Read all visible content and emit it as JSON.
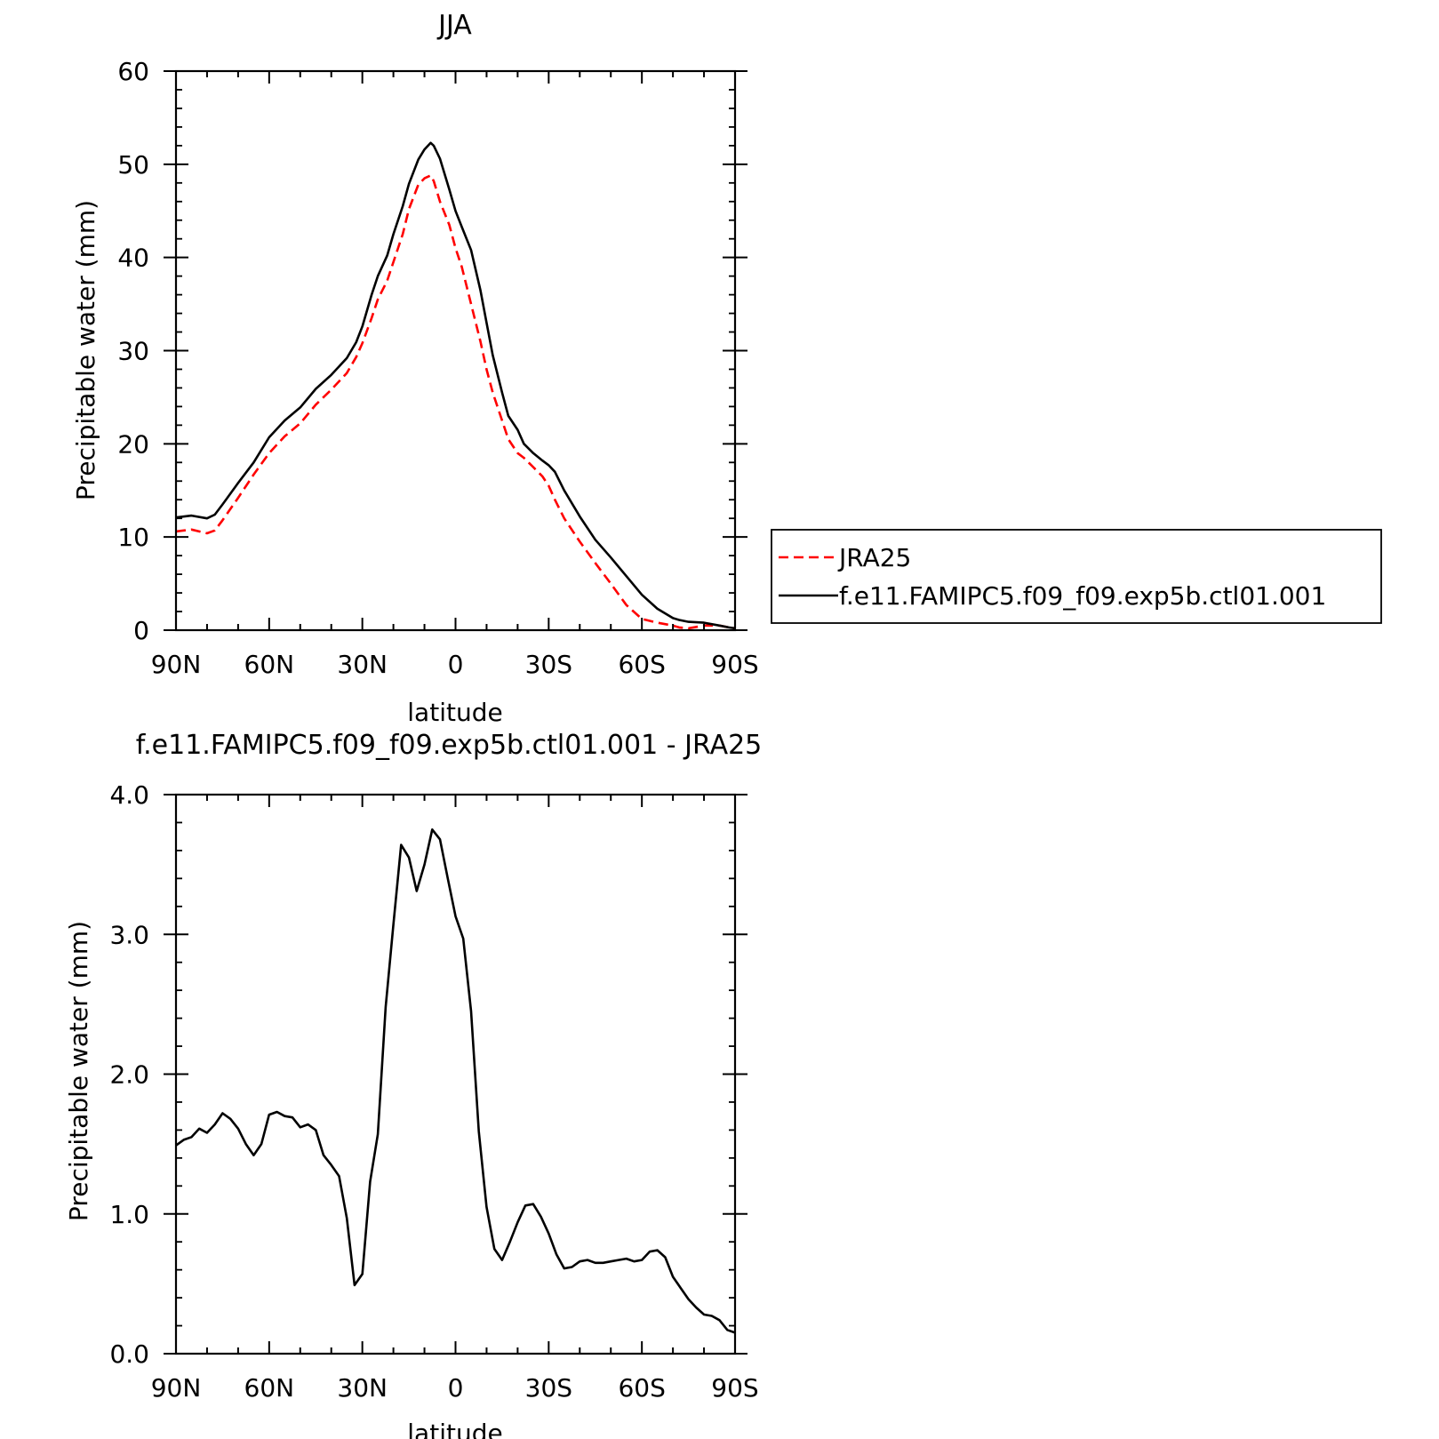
{
  "chart_data": [
    {
      "type": "line",
      "title": "JJA",
      "xlabel": "latitude",
      "ylabel": "Precipitable water (mm)",
      "xlim": [
        90,
        -90
      ],
      "ylim": [
        0,
        60
      ],
      "xticks": [
        90,
        60,
        30,
        0,
        -30,
        -60,
        -90
      ],
      "xtick_labels": [
        "90N",
        "60N",
        "30N",
        "0",
        "30S",
        "60S",
        "90S"
      ],
      "yticks": [
        0,
        10,
        20,
        30,
        40,
        50,
        60
      ],
      "ytick_labels": [
        "0",
        "10",
        "20",
        "30",
        "40",
        "50",
        "60"
      ],
      "legend_position": "right",
      "grid": false,
      "series": [
        {
          "name": "JRA25",
          "color": "#ff0000",
          "style": "dashed",
          "x": [
            90,
            85,
            80,
            77.5,
            75,
            70,
            65,
            60,
            55,
            50,
            45,
            40,
            35,
            32,
            30,
            27,
            25,
            22,
            20,
            17,
            15,
            12,
            10,
            8,
            7,
            5,
            2,
            0,
            -2,
            -5,
            -8,
            -10,
            -12,
            -15,
            -17,
            -20,
            -22,
            -25,
            -28,
            -30,
            -32,
            -35,
            -40,
            -45,
            -50,
            -55,
            -60,
            -65,
            -70,
            -72,
            -75,
            -80,
            -85,
            -88,
            -90
          ],
          "values": [
            10.6,
            10.8,
            10.4,
            10.7,
            11.8,
            14.2,
            16.7,
            19.0,
            20.8,
            22.2,
            24.2,
            25.8,
            27.6,
            29.3,
            30.8,
            33.5,
            35.5,
            37.5,
            39.5,
            42.5,
            45.2,
            47.8,
            48.5,
            48.8,
            48.2,
            46.0,
            43.5,
            41.0,
            39.0,
            35.0,
            31.0,
            28.0,
            25.5,
            22.5,
            20.5,
            19.0,
            18.5,
            17.5,
            16.5,
            15.5,
            14.0,
            12.0,
            9.5,
            7.2,
            5.0,
            2.7,
            1.2,
            0.8,
            0.5,
            0.3,
            0.2,
            0.5,
            0.5,
            0.3,
            0.2
          ]
        },
        {
          "name": "f.e11.FAMIPC5.f09_f09.exp5b.ctl01.001",
          "color": "#000000",
          "style": "solid",
          "x": [
            90,
            85,
            80,
            77.5,
            75,
            70,
            65,
            60,
            55,
            50,
            45,
            40,
            35,
            32,
            30,
            27,
            25,
            22,
            20,
            17,
            15,
            12,
            10,
            8,
            7,
            5,
            2,
            0,
            -2,
            -5,
            -8,
            -10,
            -12,
            -15,
            -17,
            -20,
            -22,
            -25,
            -28,
            -30,
            -32,
            -35,
            -40,
            -45,
            -50,
            -55,
            -60,
            -65,
            -70,
            -72,
            -75,
            -80,
            -85,
            -88,
            -90
          ],
          "values": [
            12.1,
            12.3,
            12.0,
            12.4,
            13.5,
            15.8,
            18.0,
            20.7,
            22.5,
            23.9,
            25.9,
            27.4,
            29.2,
            30.9,
            32.6,
            36.0,
            38.0,
            40.2,
            42.5,
            45.5,
            47.9,
            50.5,
            51.6,
            52.3,
            52.0,
            50.6,
            47.3,
            45.0,
            43.3,
            40.8,
            36.5,
            33.0,
            29.5,
            25.5,
            23.0,
            21.5,
            20.0,
            19.0,
            18.2,
            17.7,
            17.0,
            15.0,
            12.2,
            9.7,
            7.8,
            5.8,
            3.8,
            2.3,
            1.3,
            1.1,
            0.9,
            0.8,
            0.5,
            0.3,
            0.2
          ]
        }
      ]
    },
    {
      "type": "line",
      "title": "f.e11.FAMIPC5.f09_f09.exp5b.ctl01.001 - JRA25",
      "xlabel": "latitude",
      "ylabel": "Precipitable water (mm)",
      "xlim": [
        90,
        -90
      ],
      "ylim": [
        0.0,
        4.0
      ],
      "xticks": [
        90,
        60,
        30,
        0,
        -30,
        -60,
        -90
      ],
      "xtick_labels": [
        "90N",
        "60N",
        "30N",
        "0",
        "30S",
        "60S",
        "90S"
      ],
      "yticks": [
        0,
        1,
        2,
        3,
        4
      ],
      "ytick_labels": [
        "0.0",
        "1.0",
        "2.0",
        "3.0",
        "4.0"
      ],
      "grid": false,
      "series": [
        {
          "color": "#000000",
          "style": "solid",
          "x": [
            90,
            87.5,
            85,
            82.5,
            80,
            77.5,
            75,
            72.5,
            70,
            67.5,
            65,
            62.5,
            60,
            57.5,
            55,
            52.5,
            50,
            47.5,
            45,
            42.5,
            40,
            37.5,
            35,
            32.5,
            30,
            27.5,
            25,
            22.5,
            20,
            17.5,
            15,
            12.5,
            10,
            7.5,
            5,
            2.5,
            0,
            -2.5,
            -5,
            -7.5,
            -10,
            -12.5,
            -15,
            -17.5,
            -20,
            -22.5,
            -25,
            -27.5,
            -30,
            -32.5,
            -35,
            -37.5,
            -40,
            -42.5,
            -45,
            -47.5,
            -50,
            -52.5,
            -55,
            -57.5,
            -60,
            -62.5,
            -65,
            -67.5,
            -70,
            -72.5,
            -75,
            -77.5,
            -80,
            -82.5,
            -85,
            -87.5,
            -90
          ],
          "values": [
            1.49,
            1.53,
            1.55,
            1.61,
            1.58,
            1.64,
            1.72,
            1.68,
            1.61,
            1.5,
            1.42,
            1.5,
            1.71,
            1.73,
            1.7,
            1.69,
            1.62,
            1.64,
            1.6,
            1.42,
            1.35,
            1.27,
            0.97,
            0.49,
            0.57,
            1.23,
            1.57,
            2.48,
            3.07,
            3.64,
            3.55,
            3.31,
            3.5,
            3.75,
            3.68,
            3.4,
            3.13,
            2.97,
            2.45,
            1.59,
            1.05,
            0.75,
            0.67,
            0.8,
            0.94,
            1.06,
            1.07,
            0.98,
            0.86,
            0.71,
            0.61,
            0.62,
            0.66,
            0.67,
            0.65,
            0.65,
            0.66,
            0.67,
            0.68,
            0.66,
            0.67,
            0.73,
            0.74,
            0.69,
            0.55,
            0.47,
            0.39,
            0.33,
            0.28,
            0.27,
            0.24,
            0.17,
            0.15
          ]
        }
      ]
    }
  ]
}
